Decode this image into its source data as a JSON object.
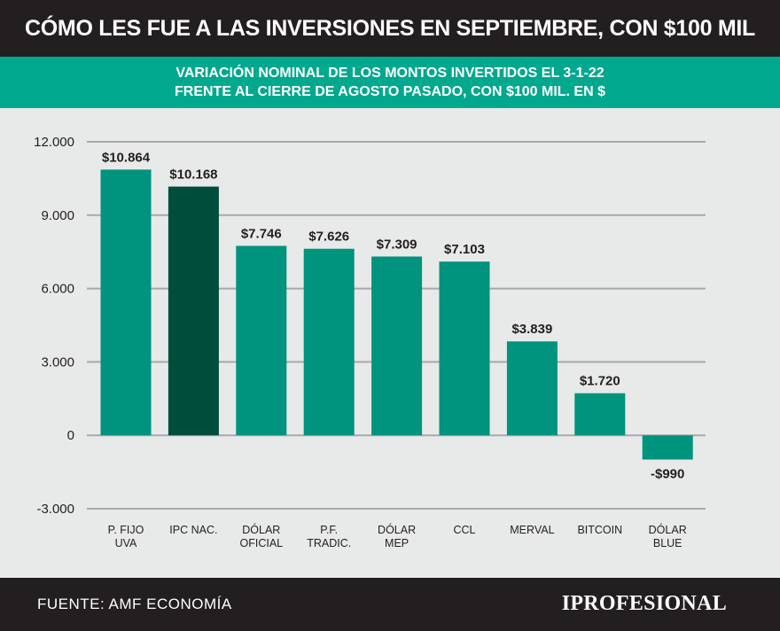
{
  "header": {
    "title": "CÓMO LES FUE A LAS INVERSIONES EN SEPTIEMBRE, CON $100 MIL"
  },
  "subheader": {
    "line1": "VARIACIÓN NOMINAL DE LOS MONTOS INVERTIDOS EL 3-1-22",
    "line2": "FRENTE AL CIERRE DE AGOSTO PASADO, CON $100 MIL. EN $"
  },
  "colors": {
    "header_bg": "#231f20",
    "accent": "#00a88e",
    "bar": "#00937d",
    "bar_highlight": "#004d3c",
    "background": "#e8e9e9",
    "grid": "#a7a9ac"
  },
  "chart_data": {
    "type": "bar",
    "title": "VARIACIÓN NOMINAL DE LOS MONTOS INVERTIDOS EL 3-1-22 FRENTE AL CIERRE DE AGOSTO PASADO, CON $100 MIL. EN $",
    "categories": [
      [
        "P. FIJO",
        "UVA"
      ],
      [
        "IPC NAC."
      ],
      [
        "DÓLAR",
        "OFICIAL"
      ],
      [
        "P.F.",
        "TRADIC."
      ],
      [
        "DÓLAR",
        "MEP"
      ],
      [
        "CCL"
      ],
      [
        "MERVAL"
      ],
      [
        "BITCOIN"
      ],
      [
        "DÓLAR",
        "BLUE"
      ]
    ],
    "values": [
      10864,
      10168,
      7746,
      7626,
      7309,
      7103,
      3839,
      1720,
      -990
    ],
    "value_labels": [
      "$10.864",
      "$10.168",
      "$7.746",
      "$7.626",
      "$7.309",
      "$7.103",
      "$3.839",
      "$1.720",
      "-$990"
    ],
    "highlight_index": 1,
    "yticks": [
      12000,
      9000,
      6000,
      3000,
      0,
      -3000
    ],
    "ytick_labels": [
      "12.000",
      "9.000",
      "6.000",
      "3.000",
      "0",
      "-3.000"
    ],
    "ylim": [
      -3000,
      12000
    ],
    "xlabel": "",
    "ylabel": "",
    "grid": true
  },
  "footer": {
    "source": "FUENTE: AMF ECONOMÍA",
    "brand_mark": "I",
    "brand": "PROFESIONAL"
  }
}
